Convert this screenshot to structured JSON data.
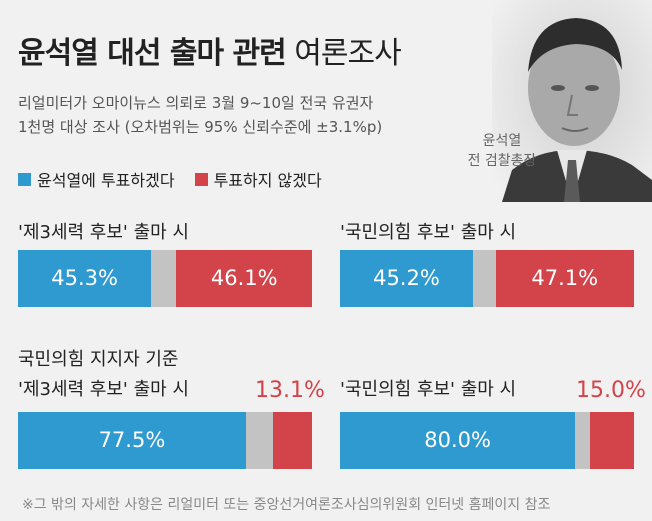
{
  "header": {
    "title_bold": "윤석열 대선 출마 관련",
    "title_light": "여론조사",
    "subtitle_lines": [
      "리얼미터가 오마이뉴스 의뢰로 3월 9~10일 전국 유권자",
      "1천명 대상 조사 (오차범위는 95% 신뢰수준에 ±3.1%p)"
    ]
  },
  "portrait": {
    "caption_lines": [
      "윤석열",
      "전 검찰총장"
    ]
  },
  "colors": {
    "vote": "#2e9ad0",
    "other": "#c3c3c3",
    "no_vote": "#d2434a"
  },
  "chart_data": [
    {
      "type": "bar",
      "orientation": "stacked-horizontal",
      "group": "",
      "title": "'제3세력 후보' 출마 시",
      "legend": [
        "윤석열에 투표하겠다",
        "투표하지 않겠다"
      ],
      "series": [
        {
          "name": "윤석열에 투표하겠다",
          "value": 45.3,
          "label": "45.3%"
        },
        {
          "name": "",
          "value": 8.6,
          "label": ""
        },
        {
          "name": "투표하지 않겠다",
          "value": 46.1,
          "label": "46.1%"
        }
      ]
    },
    {
      "type": "bar",
      "orientation": "stacked-horizontal",
      "group": "",
      "title": "'국민의힘 후보' 출마 시",
      "series": [
        {
          "name": "윤석열에 투표하겠다",
          "value": 45.2,
          "label": "45.2%"
        },
        {
          "name": "",
          "value": 7.7,
          "label": ""
        },
        {
          "name": "투표하지 않겠다",
          "value": 47.1,
          "label": "47.1%"
        }
      ]
    },
    {
      "type": "bar",
      "orientation": "stacked-horizontal",
      "group": "국민의힘 지지자 기준",
      "title": "'제3세력 후보' 출마 시",
      "series": [
        {
          "name": "윤석열에 투표하겠다",
          "value": 77.5,
          "label": "77.5%"
        },
        {
          "name": "",
          "value": 9.4,
          "label": ""
        },
        {
          "name": "투표하지 않겠다",
          "value": 13.1,
          "label": "13.1%"
        }
      ]
    },
    {
      "type": "bar",
      "orientation": "stacked-horizontal",
      "group": "",
      "title": "'국민의힘 후보' 출마 시",
      "series": [
        {
          "name": "윤석열에 투표하겠다",
          "value": 80.0,
          "label": "80.0%"
        },
        {
          "name": "",
          "value": 5.0,
          "label": ""
        },
        {
          "name": "투표하지 않겠다",
          "value": 15.0,
          "label": "15.0%"
        }
      ]
    }
  ],
  "footnote": "※그 밖의 자세한 사항은 리얼미터 또는 중앙선거여론조사심의위원회 인터넷 홈페이지 참조"
}
